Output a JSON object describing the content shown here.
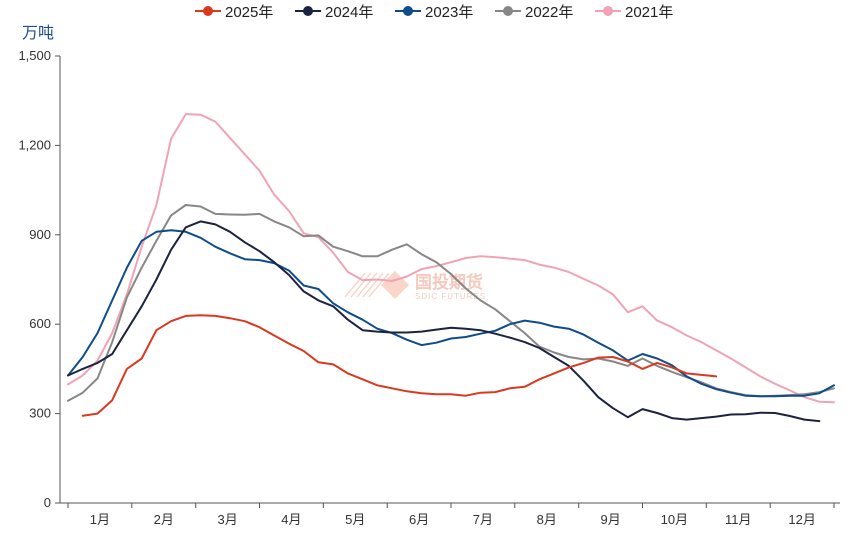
{
  "chart_data": {
    "type": "line",
    "title": "",
    "ylabel": "万吨",
    "xlabel": "",
    "ylim": [
      0,
      1500
    ],
    "yticks": [
      0,
      300,
      600,
      900,
      1200,
      1500
    ],
    "ytick_labels": [
      "0",
      "300",
      "600",
      "900",
      "1,200",
      "1,500"
    ],
    "x_range": [
      0,
      52
    ],
    "month_ticks": [
      0,
      4.33,
      8.67,
      13,
      17.33,
      21.67,
      26,
      30.33,
      34.67,
      39,
      43.33,
      47.67,
      52
    ],
    "categories": [
      "1月",
      "2月",
      "3月",
      "4月",
      "5月",
      "6月",
      "7月",
      "8月",
      "9月",
      "10月",
      "11月",
      "12月"
    ],
    "legend_position": "top",
    "series": [
      {
        "name": "2025年",
        "color": "#d9391f",
        "x": [
          1,
          2,
          3,
          4,
          5,
          6,
          7,
          8,
          9,
          10,
          11,
          12,
          13,
          14,
          15,
          16,
          17,
          18,
          19,
          20,
          21,
          22,
          23,
          24,
          25,
          26,
          27,
          28,
          29,
          30,
          31,
          32,
          33,
          34,
          35,
          36,
          37,
          38,
          39,
          40,
          41,
          42,
          43,
          44
        ],
        "values": [
          293,
          300,
          345,
          450,
          485,
          580,
          610,
          628,
          630,
          628,
          620,
          610,
          590,
          562,
          535,
          510,
          472,
          465,
          435,
          415,
          395,
          385,
          375,
          368,
          365,
          365,
          360,
          370,
          372,
          385,
          390,
          415,
          435,
          455,
          470,
          488,
          490,
          475,
          450,
          470,
          455,
          435,
          430,
          425
        ]
      },
      {
        "name": "2024年",
        "color": "#1c2340",
        "x": [
          0,
          1,
          2,
          3,
          4,
          5,
          6,
          7,
          8,
          9,
          10,
          11,
          12,
          13,
          14,
          15,
          16,
          17,
          18,
          19,
          20,
          21,
          22,
          23,
          24,
          25,
          26,
          27,
          28,
          29,
          30,
          31,
          32,
          33,
          34,
          35,
          36,
          37,
          38,
          39,
          40,
          41,
          42,
          43,
          44,
          45,
          46,
          47,
          48,
          49,
          50,
          51
        ],
        "values": [
          428,
          450,
          470,
          500,
          580,
          660,
          750,
          850,
          925,
          945,
          935,
          910,
          875,
          845,
          808,
          765,
          710,
          680,
          660,
          615,
          580,
          575,
          572,
          572,
          575,
          582,
          588,
          585,
          580,
          568,
          555,
          540,
          520,
          490,
          460,
          410,
          355,
          318,
          288,
          315,
          302,
          285,
          280,
          285,
          290,
          297,
          298,
          303,
          302,
          292,
          280,
          275
        ]
      },
      {
        "name": "2023年",
        "color": "#0e4c8a",
        "x": [
          0,
          1,
          2,
          3,
          4,
          5,
          6,
          7,
          8,
          9,
          10,
          11,
          12,
          13,
          14,
          15,
          16,
          17,
          18,
          19,
          20,
          21,
          22,
          23,
          24,
          25,
          26,
          27,
          28,
          29,
          30,
          31,
          32,
          33,
          34,
          35,
          36,
          37,
          38,
          39,
          40,
          41,
          42,
          43,
          44,
          45,
          46,
          47,
          48,
          49,
          50,
          51,
          52
        ],
        "values": [
          428,
          490,
          570,
          680,
          790,
          880,
          910,
          915,
          910,
          890,
          860,
          838,
          818,
          815,
          805,
          780,
          730,
          718,
          670,
          640,
          615,
          585,
          570,
          548,
          530,
          538,
          552,
          557,
          568,
          578,
          600,
          612,
          605,
          592,
          585,
          565,
          538,
          512,
          478,
          500,
          485,
          462,
          425,
          400,
          382,
          370,
          360,
          358,
          358,
          360,
          360,
          368,
          395
        ]
      },
      {
        "name": "2022年",
        "color": "#878787",
        "x": [
          0,
          1,
          2,
          3,
          4,
          5,
          6,
          7,
          8,
          9,
          10,
          11,
          12,
          13,
          14,
          15,
          16,
          17,
          18,
          19,
          20,
          21,
          22,
          23,
          24,
          25,
          26,
          27,
          28,
          29,
          30,
          31,
          32,
          33,
          34,
          35,
          36,
          37,
          38,
          39,
          40,
          41,
          42,
          43,
          44,
          45,
          46,
          47,
          48,
          49,
          50,
          51,
          52
        ],
        "values": [
          343,
          370,
          418,
          540,
          690,
          790,
          880,
          965,
          1000,
          995,
          970,
          968,
          967,
          970,
          945,
          925,
          895,
          898,
          860,
          845,
          828,
          828,
          850,
          868,
          835,
          808,
          768,
          720,
          680,
          650,
          610,
          570,
          525,
          505,
          490,
          482,
          485,
          475,
          460,
          485,
          460,
          440,
          422,
          405,
          385,
          372,
          362,
          358,
          360,
          362,
          365,
          372,
          385
        ]
      },
      {
        "name": "2021年",
        "color": "#f0a3b5",
        "x": [
          0,
          1,
          2,
          3,
          4,
          5,
          6,
          7,
          8,
          9,
          10,
          11,
          12,
          13,
          14,
          15,
          16,
          17,
          18,
          19,
          20,
          21,
          22,
          23,
          24,
          25,
          26,
          27,
          28,
          29,
          30,
          31,
          32,
          33,
          34,
          35,
          36,
          37,
          38,
          39,
          40,
          41,
          42,
          43,
          44,
          45,
          46,
          47,
          48,
          49,
          50,
          51,
          52
        ],
        "values": [
          398,
          428,
          478,
          570,
          700,
          860,
          1000,
          1222,
          1305,
          1303,
          1280,
          1225,
          1170,
          1115,
          1035,
          980,
          905,
          892,
          840,
          775,
          748,
          750,
          745,
          760,
          785,
          795,
          808,
          822,
          828,
          825,
          820,
          815,
          800,
          790,
          775,
          752,
          730,
          700,
          640,
          660,
          612,
          590,
          562,
          540,
          512,
          485,
          455,
          425,
          400,
          378,
          355,
          340,
          338
        ]
      }
    ]
  },
  "watermark": {
    "name": "国投期货",
    "sub": "SDIC FUTURES"
  }
}
